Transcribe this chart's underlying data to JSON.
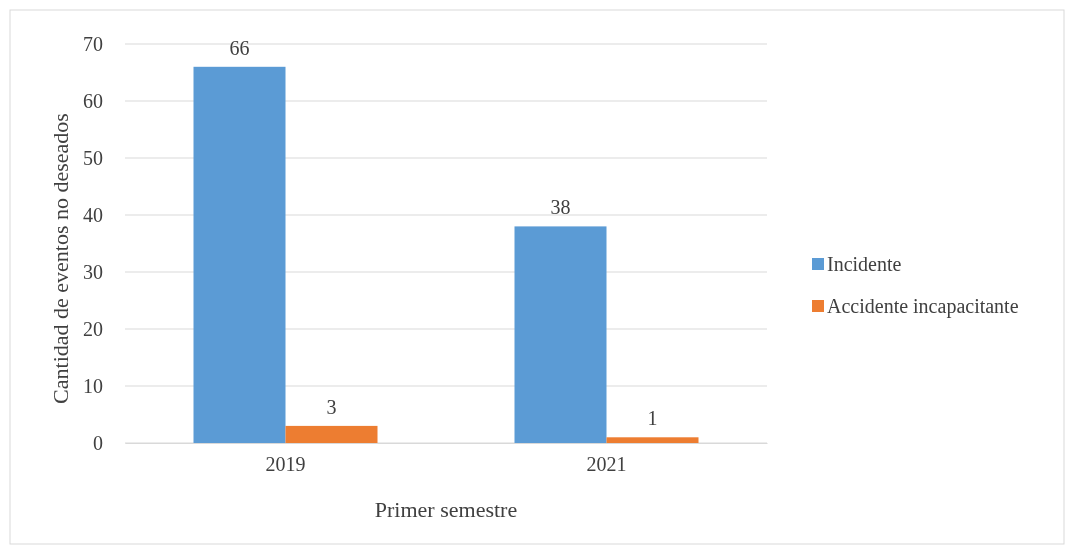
{
  "chart_data": {
    "type": "bar",
    "xlabel": "Primer semestre",
    "ylabel": "Cantidad de eventos no deseados",
    "categories": [
      "2019",
      "2021"
    ],
    "series": [
      {
        "name": "Incidente",
        "color": "#5b9bd5",
        "values": [
          66,
          38
        ]
      },
      {
        "name": "Accidente incapacitante",
        "color": "#ed7d31",
        "values": [
          3,
          1
        ]
      }
    ],
    "ylim": [
      0,
      70
    ],
    "yticks": [
      0,
      10,
      20,
      30,
      40,
      50,
      60,
      70
    ],
    "grid": "y",
    "legend": "right",
    "data_labels": true
  }
}
